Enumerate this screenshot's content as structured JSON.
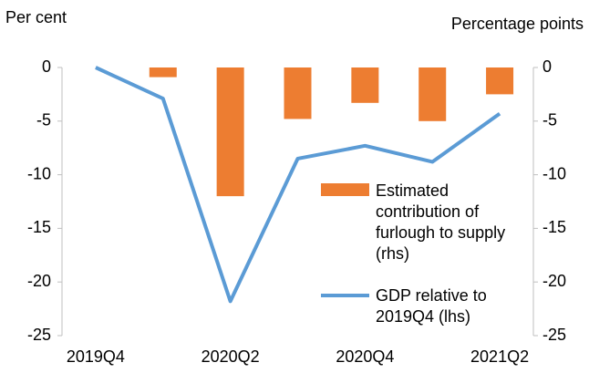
{
  "chart_data": {
    "type": "bar_line",
    "y_label": "Per cent",
    "y2_label": "Percentage points",
    "categories": [
      "2019Q4",
      null,
      "2020Q2",
      null,
      "2020Q4",
      null,
      "2021Q2"
    ],
    "series": [
      {
        "name": "Estimated contribution of furlough to supply (rhs)",
        "type": "bar",
        "axis": "y2",
        "color": "#ED7D31",
        "values": [
          0,
          -0.9,
          -12,
          -4.8,
          -3.3,
          -5,
          -2.5
        ]
      },
      {
        "name": "GDP relative to 2019Q4 (lhs)",
        "type": "line",
        "color": "#5B9BD5",
        "values": [
          0,
          -2.9,
          -21.8,
          -8.5,
          -7.3,
          -8.8,
          -4.3
        ]
      }
    ],
    "ylim": [
      -25,
      0
    ],
    "yticks": [
      0,
      -5,
      -10,
      -15,
      -20,
      -25
    ],
    "y2lim": [
      -25,
      0
    ],
    "y2ticks": [
      0,
      -5,
      -10,
      -15,
      -20,
      -25
    ]
  }
}
